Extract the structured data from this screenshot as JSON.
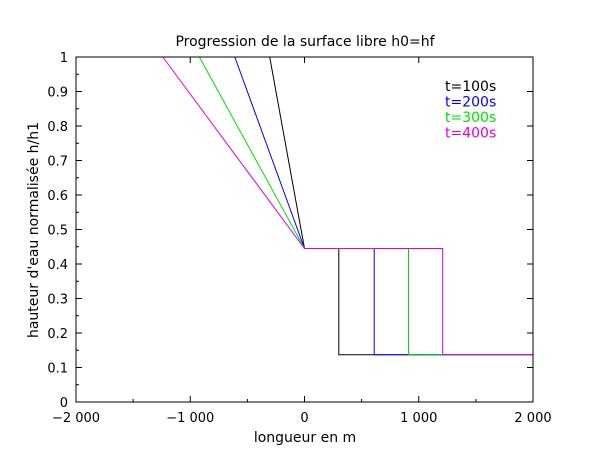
{
  "chart_data": {
    "type": "line",
    "title": "Progression de la surface libre h0=hf",
    "xlabel": "longueur en m",
    "ylabel": "hauteur d'eau normalisée h/h1",
    "xlim": [
      -2000,
      2000
    ],
    "ylim": [
      0,
      1
    ],
    "x_ticks": [
      -2000,
      -1000,
      0,
      1000,
      2000
    ],
    "x_tick_labels": [
      "−2 000",
      "−1 000",
      "0",
      "1 000",
      "2 000"
    ],
    "y_ticks": [
      0,
      0.1,
      0.2,
      0.3,
      0.4,
      0.5,
      0.6,
      0.7,
      0.8,
      0.9,
      1
    ],
    "y_tick_labels": [
      "0",
      "0.1",
      "0.2",
      "0.3",
      "0.4",
      "0.5",
      "0.6",
      "0.7",
      "0.8",
      "0.9",
      "1"
    ],
    "grid": false,
    "legend_position": "top-right",
    "series": [
      {
        "name": "t=100s",
        "color": "#000000",
        "x": [
          -305,
          0,
          0,
          300,
          300,
          2000
        ],
        "y": [
          1,
          0.445,
          0.445,
          0.445,
          0.137,
          0.137
        ]
      },
      {
        "name": "t=200s",
        "color": "#0000ff",
        "x": [
          -610,
          0,
          0,
          610,
          610,
          2000
        ],
        "y": [
          1,
          0.445,
          0.445,
          0.445,
          0.137,
          0.137
        ]
      },
      {
        "name": "t=300s",
        "color": "#00e000",
        "x": [
          -920,
          0,
          0,
          910,
          910,
          2000
        ],
        "y": [
          1,
          0.445,
          0.445,
          0.445,
          0.137,
          0.137
        ]
      },
      {
        "name": "t=400s",
        "color": "#e000e0",
        "x": [
          -1240,
          0,
          0,
          1210,
          1210,
          2000
        ],
        "y": [
          1,
          0.445,
          0.445,
          0.445,
          0.137,
          0.137
        ]
      }
    ]
  }
}
